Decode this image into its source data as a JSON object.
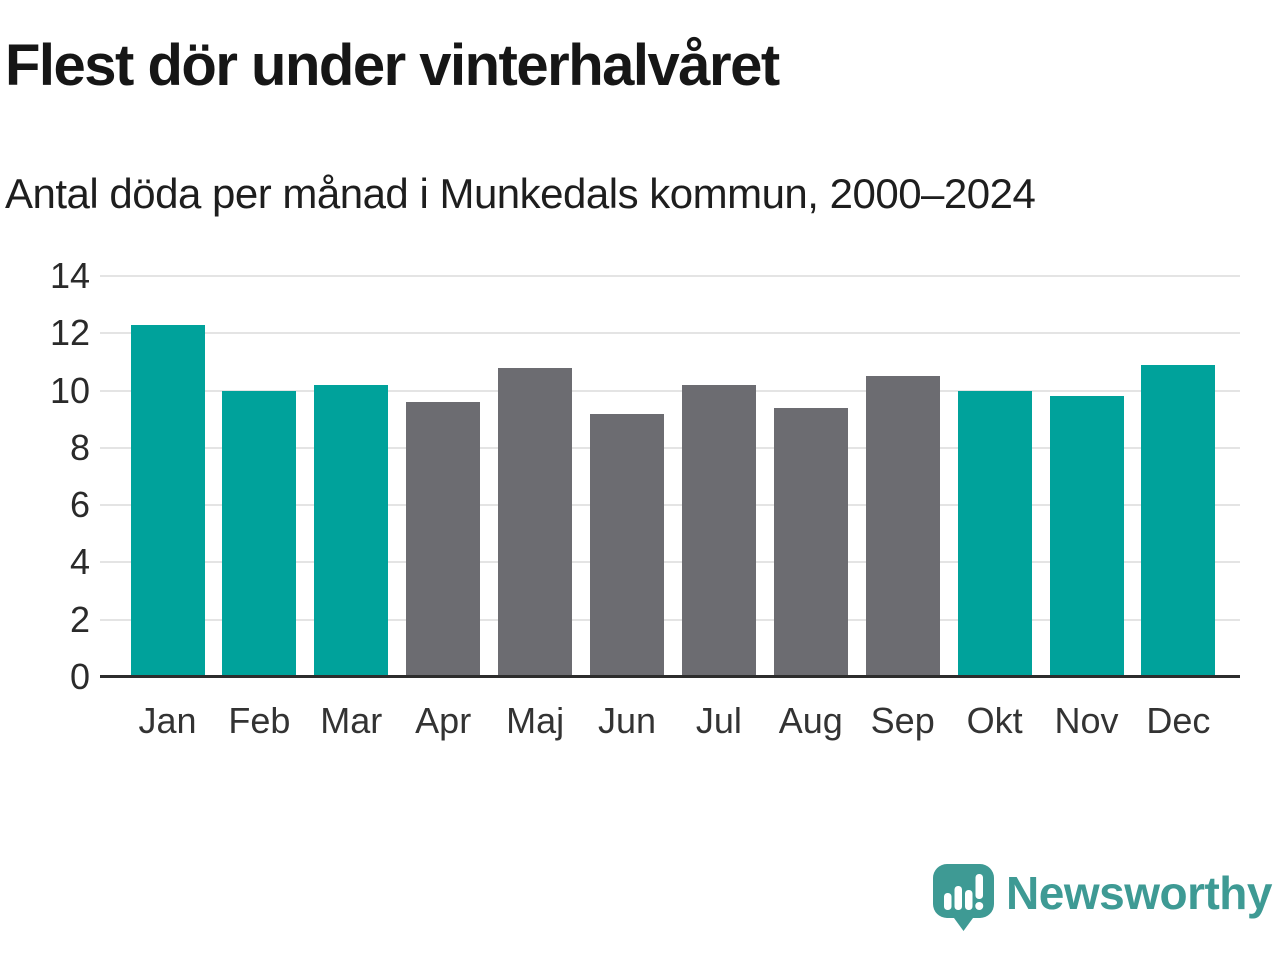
{
  "title": "Flest dör under vinterhalvåret",
  "subtitle": "Antal döda per månad i Munkedals kommun, 2000–2024",
  "chart_data": {
    "type": "bar",
    "title": "Flest dör under vinterhalvåret",
    "subtitle": "Antal döda per månad i Munkedals kommun, 2000–2024",
    "categories": [
      "Jan",
      "Feb",
      "Mar",
      "Apr",
      "Maj",
      "Jun",
      "Jul",
      "Aug",
      "Sep",
      "Okt",
      "Nov",
      "Dec"
    ],
    "values": [
      12.3,
      10.0,
      10.2,
      9.6,
      10.8,
      9.2,
      10.2,
      9.4,
      10.5,
      10.0,
      9.8,
      10.9
    ],
    "bar_colors": [
      "#00a29b",
      "#00a29b",
      "#00a29b",
      "#6c6c71",
      "#6c6c71",
      "#6c6c71",
      "#6c6c71",
      "#6c6c71",
      "#6c6c71",
      "#00a29b",
      "#00a29b",
      "#00a29b"
    ],
    "colors": {
      "winter_half_year": "#00a29b",
      "summer_half_year": "#6c6c71"
    },
    "xlabel": "",
    "ylabel": "",
    "ylim": [
      0,
      14
    ],
    "yticks": [
      0,
      2,
      4,
      6,
      8,
      10,
      12,
      14
    ],
    "grid": true,
    "legend": false
  },
  "branding": {
    "logo_text": "Newsworthy",
    "logo_color": "#3e9a94",
    "logo_icon": "speech-bubble-bar-chart-exclamation"
  }
}
